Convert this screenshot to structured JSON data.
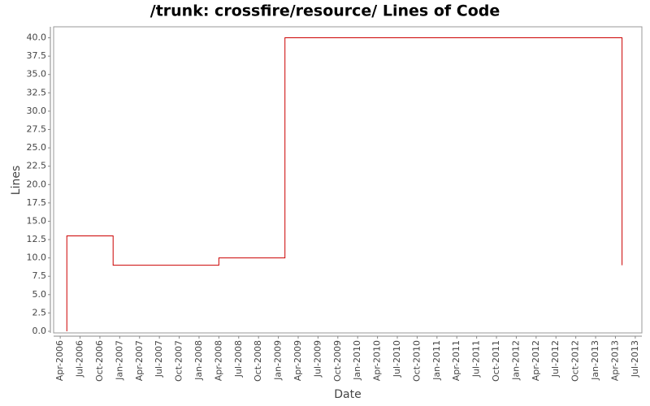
{
  "chart_data": {
    "type": "line",
    "step": "post",
    "title": "/trunk: crossfire/resource/ Lines of Code",
    "x_label": "Date",
    "y_label": "Lines",
    "x": [
      "2006-05",
      "2006-05",
      "2006-12",
      "2008-04",
      "2009-02",
      "2013-05"
    ],
    "series": [
      {
        "name": "Lines",
        "color": "#cc0000",
        "values": [
          0,
          13,
          9,
          10,
          40,
          9
        ]
      }
    ],
    "legend": false,
    "xlim": [
      "2006-03",
      "2013-08"
    ],
    "xticks": [
      {
        "value": "2006-04",
        "label": "Apr-2006"
      },
      {
        "value": "2006-07",
        "label": "Jul-2006"
      },
      {
        "value": "2006-10",
        "label": "Oct-2006"
      },
      {
        "value": "2007-01",
        "label": "Jan-2007"
      },
      {
        "value": "2007-04",
        "label": "Apr-2007"
      },
      {
        "value": "2007-07",
        "label": "Jul-2007"
      },
      {
        "value": "2007-10",
        "label": "Oct-2007"
      },
      {
        "value": "2008-01",
        "label": "Jan-2008"
      },
      {
        "value": "2008-04",
        "label": "Apr-2008"
      },
      {
        "value": "2008-07",
        "label": "Jul-2008"
      },
      {
        "value": "2008-10",
        "label": "Oct-2008"
      },
      {
        "value": "2009-01",
        "label": "Jan-2009"
      },
      {
        "value": "2009-04",
        "label": "Apr-2009"
      },
      {
        "value": "2009-07",
        "label": "Jul-2009"
      },
      {
        "value": "2009-10",
        "label": "Oct-2009"
      },
      {
        "value": "2010-01",
        "label": "Jan-2010"
      },
      {
        "value": "2010-04",
        "label": "Apr-2010"
      },
      {
        "value": "2010-07",
        "label": "Jul-2010"
      },
      {
        "value": "2010-10",
        "label": "Oct-2010"
      },
      {
        "value": "2011-01",
        "label": "Jan-2011"
      },
      {
        "value": "2011-04",
        "label": "Apr-2011"
      },
      {
        "value": "2011-07",
        "label": "Jul-2011"
      },
      {
        "value": "2011-10",
        "label": "Oct-2011"
      },
      {
        "value": "2012-01",
        "label": "Jan-2012"
      },
      {
        "value": "2012-04",
        "label": "Apr-2012"
      },
      {
        "value": "2012-07",
        "label": "Jul-2012"
      },
      {
        "value": "2012-10",
        "label": "Oct-2012"
      },
      {
        "value": "2013-01",
        "label": "Jan-2013"
      },
      {
        "value": "2013-04",
        "label": "Apr-2013"
      },
      {
        "value": "2013-07",
        "label": "Jul-2013"
      }
    ],
    "ylim": [
      0,
      41.5
    ],
    "yticks": [
      {
        "value": 0,
        "label": "0.0"
      },
      {
        "value": 2.5,
        "label": "2.5"
      },
      {
        "value": 5,
        "label": "5.0"
      },
      {
        "value": 7.5,
        "label": "7.5"
      },
      {
        "value": 10,
        "label": "10.0"
      },
      {
        "value": 12.5,
        "label": "12.5"
      },
      {
        "value": 15,
        "label": "15.0"
      },
      {
        "value": 17.5,
        "label": "17.5"
      },
      {
        "value": 20,
        "label": "20.0"
      },
      {
        "value": 22.5,
        "label": "22.5"
      },
      {
        "value": 25,
        "label": "25.0"
      },
      {
        "value": 27.5,
        "label": "27.5"
      },
      {
        "value": 30,
        "label": "30.0"
      },
      {
        "value": 32.5,
        "label": "32.5"
      },
      {
        "value": 35,
        "label": "35.0"
      },
      {
        "value": 37.5,
        "label": "37.5"
      },
      {
        "value": 40,
        "label": "40.0"
      }
    ],
    "grid": false
  }
}
